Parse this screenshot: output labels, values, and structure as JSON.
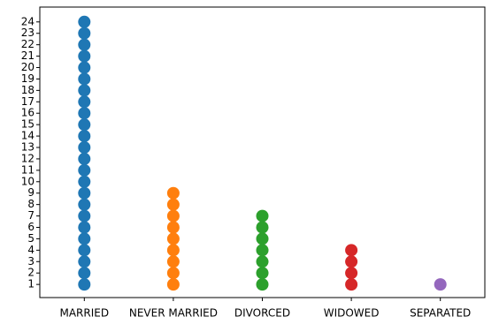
{
  "chart_data": {
    "type": "strip",
    "categories": [
      "MARRIED",
      "NEVER MARRIED",
      "DIVORCED",
      "WIDOWED",
      "SEPARATED"
    ],
    "colors": [
      "#1f77b4",
      "#ff7f0e",
      "#2ca02c",
      "#d62728",
      "#9467bd"
    ],
    "values": [
      [
        1,
        2,
        3,
        4,
        5,
        6,
        7,
        8,
        9,
        10,
        11,
        12,
        13,
        14,
        15,
        16,
        17,
        18,
        19,
        20,
        21,
        22,
        23,
        24
      ],
      [
        1,
        2,
        3,
        4,
        5,
        6,
        7,
        8,
        9
      ],
      [
        1,
        2,
        3,
        4,
        5,
        6,
        7
      ],
      [
        1,
        2,
        3,
        4
      ],
      [
        1
      ]
    ],
    "ylim": [
      -0.15,
      25.3
    ],
    "yticks": [
      1,
      2,
      3,
      4,
      5,
      6,
      7,
      8,
      9,
      10,
      11,
      12,
      13,
      14,
      15,
      16,
      17,
      18,
      19,
      20,
      21,
      22,
      23,
      24
    ]
  }
}
